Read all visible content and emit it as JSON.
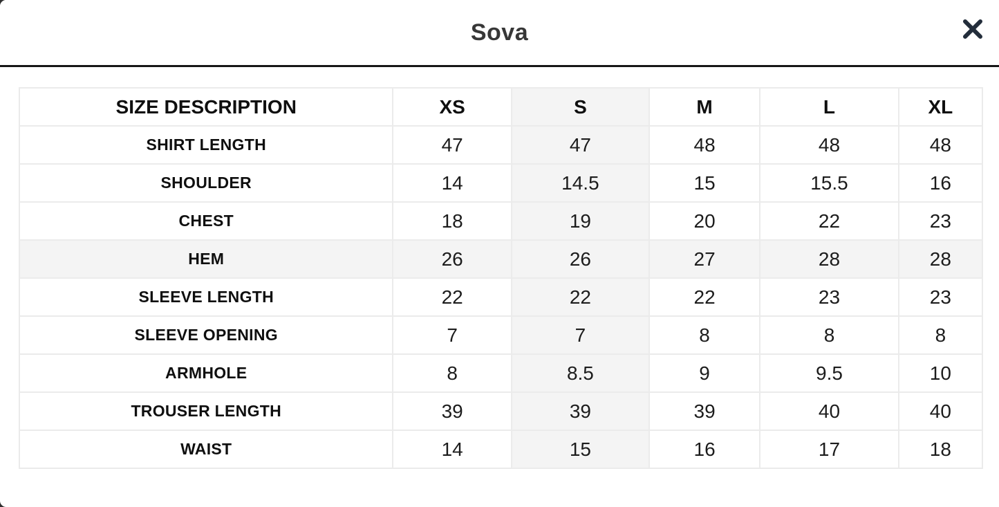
{
  "modal": {
    "title": "Sova",
    "close_icon": "x-icon"
  },
  "colors": {
    "header_divider": "#161616",
    "close_icon": "#232d3b",
    "cell_border": "#ebebeb",
    "highlight_fill": "#f4f4f4",
    "title_text": "#373737",
    "table_text": "#1c1c1c"
  },
  "size_chart": {
    "columns": [
      "SIZE DESCRIPTION",
      "XS",
      "S",
      "M",
      "L",
      "XL"
    ],
    "highlighted_column": "S",
    "highlighted_row": "HEM",
    "rows": [
      {
        "label": "SHIRT LENGTH",
        "values": [
          "47",
          "47",
          "48",
          "48",
          "48"
        ]
      },
      {
        "label": "SHOULDER",
        "values": [
          "14",
          "14.5",
          "15",
          "15.5",
          "16"
        ]
      },
      {
        "label": "CHEST",
        "values": [
          "18",
          "19",
          "20",
          "22",
          "23"
        ]
      },
      {
        "label": "HEM",
        "values": [
          "26",
          "26",
          "27",
          "28",
          "28"
        ]
      },
      {
        "label": "SLEEVE LENGTH",
        "values": [
          "22",
          "22",
          "22",
          "23",
          "23"
        ]
      },
      {
        "label": "SLEEVE OPENING",
        "values": [
          "7",
          "7",
          "8",
          "8",
          "8"
        ]
      },
      {
        "label": "ARMHOLE",
        "values": [
          "8",
          "8.5",
          "9",
          "9.5",
          "10"
        ]
      },
      {
        "label": "TROUSER LENGTH",
        "values": [
          "39",
          "39",
          "39",
          "40",
          "40"
        ]
      },
      {
        "label": "WAIST",
        "values": [
          "14",
          "15",
          "16",
          "17",
          "18"
        ]
      }
    ]
  }
}
